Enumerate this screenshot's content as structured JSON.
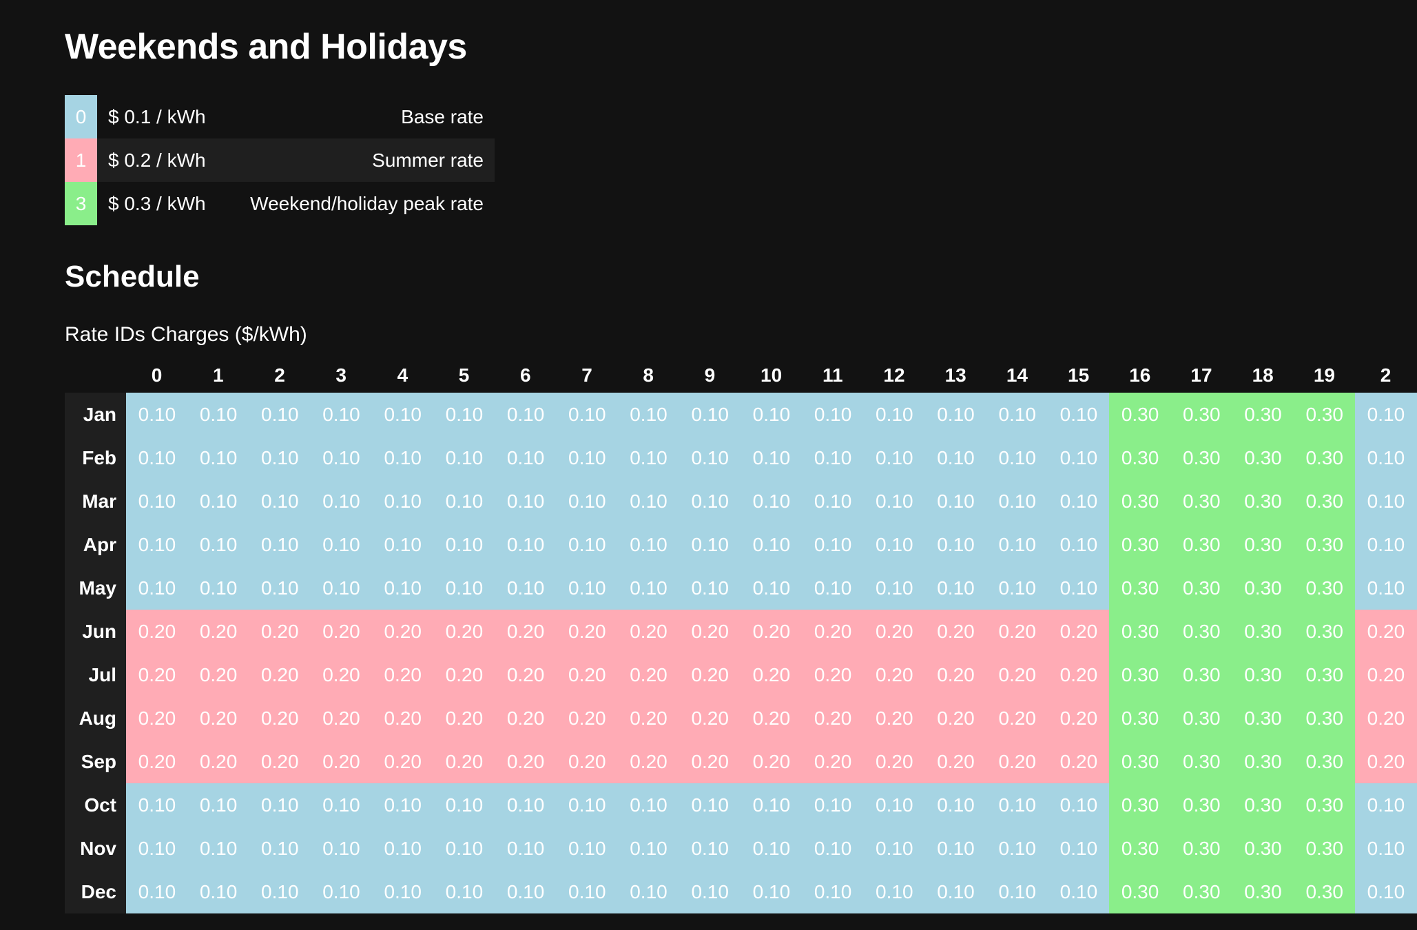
{
  "page": {
    "title": "Weekends and Holidays",
    "schedule_title": "Schedule",
    "table_caption": "Rate IDs Charges ($/kWh)"
  },
  "legend": [
    {
      "id": "0",
      "rate": "$ 0.1 / kWh",
      "description": "Base rate",
      "color": "#a6d4e3"
    },
    {
      "id": "1",
      "rate": "$ 0.2 / kWh",
      "description": "Summer rate",
      "color": "#ffabb5"
    },
    {
      "id": "3",
      "rate": "$ 0.3 / kWh",
      "description": "Weekend/holiday peak rate",
      "color": "#8aee8a"
    }
  ],
  "schedule": {
    "hours": [
      "0",
      "1",
      "2",
      "3",
      "4",
      "5",
      "6",
      "7",
      "8",
      "9",
      "10",
      "11",
      "12",
      "13",
      "14",
      "15",
      "16",
      "17",
      "18",
      "19",
      "2"
    ],
    "months": [
      "Jan",
      "Feb",
      "Mar",
      "Apr",
      "May",
      "Jun",
      "Jul",
      "Aug",
      "Sep",
      "Oct",
      "Nov",
      "Dec"
    ],
    "rate_colors": {
      "0.10": "#a6d4e3",
      "0.20": "#ffabb5",
      "0.30": "#8aee8a"
    },
    "values": [
      [
        "0.10",
        "0.10",
        "0.10",
        "0.10",
        "0.10",
        "0.10",
        "0.10",
        "0.10",
        "0.10",
        "0.10",
        "0.10",
        "0.10",
        "0.10",
        "0.10",
        "0.10",
        "0.10",
        "0.30",
        "0.30",
        "0.30",
        "0.30",
        "0.10"
      ],
      [
        "0.10",
        "0.10",
        "0.10",
        "0.10",
        "0.10",
        "0.10",
        "0.10",
        "0.10",
        "0.10",
        "0.10",
        "0.10",
        "0.10",
        "0.10",
        "0.10",
        "0.10",
        "0.10",
        "0.30",
        "0.30",
        "0.30",
        "0.30",
        "0.10"
      ],
      [
        "0.10",
        "0.10",
        "0.10",
        "0.10",
        "0.10",
        "0.10",
        "0.10",
        "0.10",
        "0.10",
        "0.10",
        "0.10",
        "0.10",
        "0.10",
        "0.10",
        "0.10",
        "0.10",
        "0.30",
        "0.30",
        "0.30",
        "0.30",
        "0.10"
      ],
      [
        "0.10",
        "0.10",
        "0.10",
        "0.10",
        "0.10",
        "0.10",
        "0.10",
        "0.10",
        "0.10",
        "0.10",
        "0.10",
        "0.10",
        "0.10",
        "0.10",
        "0.10",
        "0.10",
        "0.30",
        "0.30",
        "0.30",
        "0.30",
        "0.10"
      ],
      [
        "0.10",
        "0.10",
        "0.10",
        "0.10",
        "0.10",
        "0.10",
        "0.10",
        "0.10",
        "0.10",
        "0.10",
        "0.10",
        "0.10",
        "0.10",
        "0.10",
        "0.10",
        "0.10",
        "0.30",
        "0.30",
        "0.30",
        "0.30",
        "0.10"
      ],
      [
        "0.20",
        "0.20",
        "0.20",
        "0.20",
        "0.20",
        "0.20",
        "0.20",
        "0.20",
        "0.20",
        "0.20",
        "0.20",
        "0.20",
        "0.20",
        "0.20",
        "0.20",
        "0.20",
        "0.30",
        "0.30",
        "0.30",
        "0.30",
        "0.20"
      ],
      [
        "0.20",
        "0.20",
        "0.20",
        "0.20",
        "0.20",
        "0.20",
        "0.20",
        "0.20",
        "0.20",
        "0.20",
        "0.20",
        "0.20",
        "0.20",
        "0.20",
        "0.20",
        "0.20",
        "0.30",
        "0.30",
        "0.30",
        "0.30",
        "0.20"
      ],
      [
        "0.20",
        "0.20",
        "0.20",
        "0.20",
        "0.20",
        "0.20",
        "0.20",
        "0.20",
        "0.20",
        "0.20",
        "0.20",
        "0.20",
        "0.20",
        "0.20",
        "0.20",
        "0.20",
        "0.30",
        "0.30",
        "0.30",
        "0.30",
        "0.20"
      ],
      [
        "0.20",
        "0.20",
        "0.20",
        "0.20",
        "0.20",
        "0.20",
        "0.20",
        "0.20",
        "0.20",
        "0.20",
        "0.20",
        "0.20",
        "0.20",
        "0.20",
        "0.20",
        "0.20",
        "0.30",
        "0.30",
        "0.30",
        "0.30",
        "0.20"
      ],
      [
        "0.10",
        "0.10",
        "0.10",
        "0.10",
        "0.10",
        "0.10",
        "0.10",
        "0.10",
        "0.10",
        "0.10",
        "0.10",
        "0.10",
        "0.10",
        "0.10",
        "0.10",
        "0.10",
        "0.30",
        "0.30",
        "0.30",
        "0.30",
        "0.10"
      ],
      [
        "0.10",
        "0.10",
        "0.10",
        "0.10",
        "0.10",
        "0.10",
        "0.10",
        "0.10",
        "0.10",
        "0.10",
        "0.10",
        "0.10",
        "0.10",
        "0.10",
        "0.10",
        "0.10",
        "0.30",
        "0.30",
        "0.30",
        "0.30",
        "0.10"
      ],
      [
        "0.10",
        "0.10",
        "0.10",
        "0.10",
        "0.10",
        "0.10",
        "0.10",
        "0.10",
        "0.10",
        "0.10",
        "0.10",
        "0.10",
        "0.10",
        "0.10",
        "0.10",
        "0.10",
        "0.30",
        "0.30",
        "0.30",
        "0.30",
        "0.10"
      ]
    ]
  }
}
